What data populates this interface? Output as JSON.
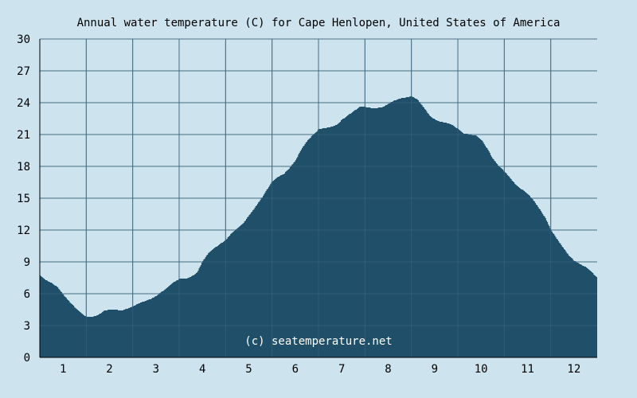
{
  "chart_data": {
    "type": "area",
    "title": "Annual water temperature (C) for Cape Henlopen, United States of America",
    "xlabel": "",
    "ylabel": "",
    "ylim": [
      0,
      30
    ],
    "xlim": [
      0.5,
      12.5
    ],
    "y_ticks": [
      "0",
      "3",
      "6",
      "9",
      "12",
      "15",
      "18",
      "21",
      "24",
      "27",
      "30"
    ],
    "x_ticks": [
      "1",
      "2",
      "3",
      "4",
      "5",
      "6",
      "7",
      "8",
      "9",
      "10",
      "11",
      "12"
    ],
    "grid": true,
    "watermark": "(c) seatemperature.net",
    "colors": {
      "background": "#cde3ee",
      "plot_background": "#cde3ee",
      "area_fill": "#1f4f69",
      "grid_line": "#4d6f85",
      "axis_line": "#000000"
    },
    "x": [
      0.5,
      0.62,
      0.75,
      0.88,
      1.0,
      1.12,
      1.25,
      1.38,
      1.5,
      1.6,
      1.75,
      1.88,
      2.0,
      2.12,
      2.25,
      2.38,
      2.5,
      2.62,
      2.75,
      2.88,
      3.0,
      3.12,
      3.25,
      3.38,
      3.5,
      3.62,
      3.75,
      3.88,
      4.0,
      4.12,
      4.25,
      4.38,
      4.5,
      4.62,
      4.75,
      4.88,
      5.0,
      5.12,
      5.25,
      5.38,
      5.5,
      5.62,
      5.75,
      5.88,
      6.0,
      6.12,
      6.25,
      6.38,
      6.5,
      6.62,
      6.75,
      6.88,
      7.0,
      7.12,
      7.25,
      7.38,
      7.5,
      7.62,
      7.75,
      7.88,
      8.0,
      8.12,
      8.25,
      8.38,
      8.5,
      8.62,
      8.75,
      8.88,
      9.0,
      9.12,
      9.25,
      9.38,
      9.5,
      9.62,
      9.75,
      9.88,
      10.0,
      10.12,
      10.25,
      10.38,
      10.5,
      10.62,
      10.75,
      10.88,
      11.0,
      11.12,
      11.25,
      11.38,
      11.5,
      11.62,
      11.75,
      11.88,
      12.0,
      12.12,
      12.25,
      12.38,
      12.5
    ],
    "series": [
      {
        "values": [
          7.7,
          7.3,
          7.0,
          6.6,
          5.9,
          5.3,
          4.7,
          4.2,
          3.8,
          3.8,
          4.0,
          4.4,
          4.5,
          4.5,
          4.4,
          4.6,
          4.8,
          5.1,
          5.3,
          5.5,
          5.8,
          6.2,
          6.6,
          7.1,
          7.4,
          7.4,
          7.6,
          8.0,
          9.1,
          9.8,
          10.3,
          10.7,
          11.1,
          11.7,
          12.2,
          12.7,
          13.4,
          14.1,
          14.9,
          15.8,
          16.6,
          17.0,
          17.3,
          17.9,
          18.6,
          19.6,
          20.4,
          21.0,
          21.5,
          21.6,
          21.7,
          21.9,
          22.4,
          22.8,
          23.2,
          23.6,
          23.6,
          23.5,
          23.5,
          23.6,
          23.9,
          24.2,
          24.4,
          24.5,
          24.6,
          24.3,
          23.6,
          22.8,
          22.4,
          22.2,
          22.1,
          21.9,
          21.5,
          21.1,
          21.0,
          20.9,
          20.5,
          19.7,
          18.7,
          18.0,
          17.5,
          16.9,
          16.2,
          15.8,
          15.4,
          14.8,
          14.0,
          13.1,
          12.0,
          11.2,
          10.4,
          9.6,
          9.1,
          8.8,
          8.5,
          8.0,
          7.5
        ]
      }
    ]
  }
}
